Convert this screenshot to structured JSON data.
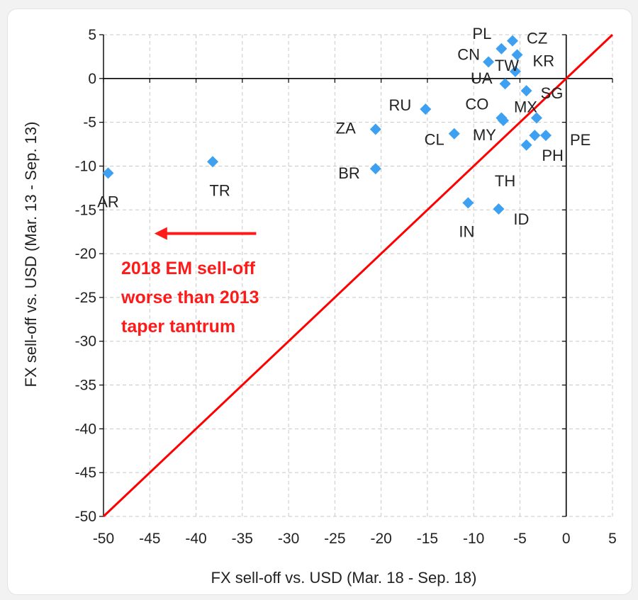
{
  "chart_data": {
    "type": "scatter",
    "xlabel": "FX sell-off vs. USD (Mar. 18 - Sep. 18)",
    "ylabel": "FX sell-off vs. USD (Mar. 13 - Sep. 13)",
    "xlim": [
      -50,
      5
    ],
    "ylim": [
      -50,
      5
    ],
    "xticks": [
      -50,
      -45,
      -40,
      -35,
      -30,
      -25,
      -20,
      -15,
      -10,
      -5,
      0,
      5
    ],
    "yticks": [
      5,
      0,
      -5,
      -10,
      -15,
      -20,
      -25,
      -30,
      -35,
      -40,
      -45,
      -50
    ],
    "grid": true,
    "marker_color": "#3da0f0",
    "line_color": "#ff0000",
    "reference_line": {
      "from": [
        -50,
        -50
      ],
      "to": [
        5,
        5
      ]
    },
    "points": [
      {
        "label": "AR",
        "x": -49.5,
        "y": -10.8
      },
      {
        "label": "TR",
        "x": -38.2,
        "y": -9.5
      },
      {
        "label": "ZA",
        "x": -20.6,
        "y": -5.8
      },
      {
        "label": "BR",
        "x": -20.6,
        "y": -10.3
      },
      {
        "label": "RU",
        "x": -15.2,
        "y": -3.5
      },
      {
        "label": "CL",
        "x": -12.1,
        "y": -6.3
      },
      {
        "label": "IN",
        "x": -10.6,
        "y": -14.2
      },
      {
        "label": "ID",
        "x": -7.3,
        "y": -14.9
      },
      {
        "label": "CN",
        "x": -8.4,
        "y": 1.9
      },
      {
        "label": "PL",
        "x": -7.0,
        "y": 3.4
      },
      {
        "label": "CZ",
        "x": -5.8,
        "y": 4.3
      },
      {
        "label": "KR",
        "x": -5.3,
        "y": 2.7
      },
      {
        "label": "TW",
        "x": -5.5,
        "y": 0.8
      },
      {
        "label": "UA",
        "x": -6.6,
        "y": -0.6
      },
      {
        "label": "SG",
        "x": -4.3,
        "y": -1.4
      },
      {
        "label": "CO",
        "x": -7.0,
        "y": -4.5
      },
      {
        "label": "MY",
        "x": -6.8,
        "y": -4.8
      },
      {
        "label": "MX",
        "x": -3.2,
        "y": -4.5
      },
      {
        "label": "TH",
        "x": -4.3,
        "y": -7.6
      },
      {
        "label": "PH",
        "x": -3.4,
        "y": -6.5
      },
      {
        "label": "PE",
        "x": -2.2,
        "y": -6.5
      }
    ],
    "annotation": {
      "lines": [
        "2018  EM sell-off",
        "worse than 2013",
        "taper tantrum"
      ],
      "color": "#ff1a1a",
      "arrow_from_x": -33.5,
      "arrow_to_x": -44.5,
      "arrow_y": -17.7
    }
  }
}
